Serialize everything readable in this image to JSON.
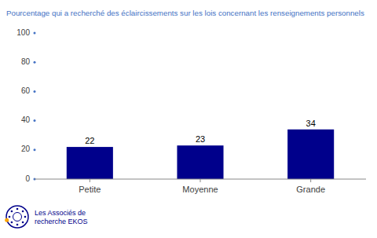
{
  "chart_data": {
    "type": "bar",
    "title": "Pourcentage qui a recherché des éclaircissements sur les lois concernant les renseignements personnels",
    "categories": [
      "Petite",
      "Moyenne",
      "Grande"
    ],
    "values": [
      22,
      23,
      34
    ],
    "color": "#00008B",
    "ylim": [
      0,
      100
    ],
    "yticks": [
      0,
      20,
      40,
      60,
      80,
      100
    ],
    "grid": false,
    "data_labels": true,
    "annotations": [
      "Les Associés de",
      "recherche EKOS"
    ]
  }
}
